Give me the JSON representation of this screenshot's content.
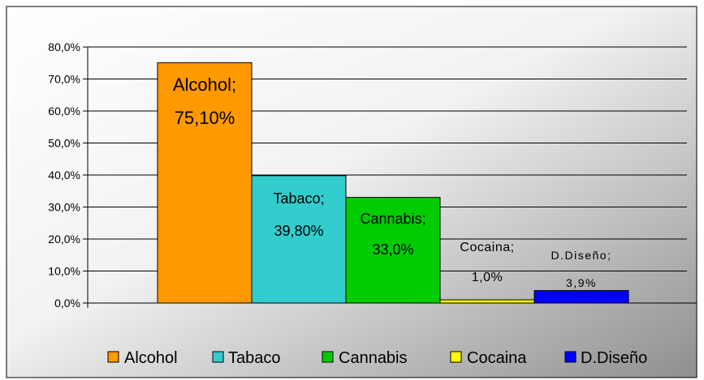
{
  "chart_data": {
    "type": "bar",
    "title": "",
    "xlabel": "",
    "ylabel": "",
    "ylim": [
      0,
      80
    ],
    "y_ticks": [
      "0,0%",
      "10,0%",
      "20,0%",
      "30,0%",
      "40,0%",
      "50,0%",
      "60,0%",
      "70,0%",
      "80,0%"
    ],
    "grid": true,
    "legend_position": "bottom",
    "categories": [
      "Alcohol",
      "Tabaco",
      "Cannabis",
      "Cocaina",
      "D.Diseño"
    ],
    "values": [
      75.1,
      39.8,
      33.0,
      1.0,
      3.9
    ],
    "data_labels": [
      [
        "Alcohol;",
        "75,10%"
      ],
      [
        "Tabaco;",
        "39,80%"
      ],
      [
        "Cannabis;",
        "33,0%"
      ],
      [
        "Cocaina;",
        "1,0%"
      ],
      [
        "D.Diseño;",
        "3,9%"
      ]
    ],
    "colors": [
      "#FF9900",
      "#33CCCC",
      "#00CC00",
      "#FFFF00",
      "#0000FF"
    ],
    "legend": [
      "Alcohol",
      "Tabaco",
      "Cannabis",
      "Cocaina",
      "D.Diseño"
    ]
  }
}
